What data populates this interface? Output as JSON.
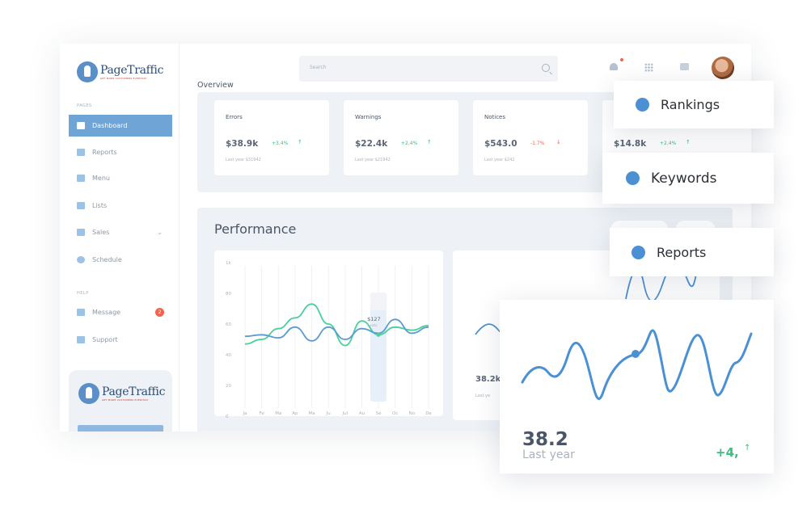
{
  "brand": {
    "name": "PageTraffic",
    "tagline": "GET MORE CUSTOMERS EVERYDAY"
  },
  "search": {
    "placeholder": "Search"
  },
  "sidebar": {
    "pages_label": "PAGES",
    "help_label": "HELP",
    "items": [
      {
        "label": "Dashboard",
        "icon": "dashboard-icon",
        "active": true
      },
      {
        "label": "Reports",
        "icon": "chart-icon"
      },
      {
        "label": "Menu",
        "icon": "menu-icon"
      },
      {
        "label": "Lists",
        "icon": "list-icon"
      },
      {
        "label": "Sales",
        "icon": "sales-icon",
        "caret": "⌄"
      },
      {
        "label": "Schedule",
        "icon": "clock-icon"
      }
    ],
    "help_items": [
      {
        "label": "Message",
        "icon": "message-icon",
        "badge": "2"
      },
      {
        "label": "Support",
        "icon": "support-icon"
      }
    ]
  },
  "overview": {
    "title": "Overview",
    "cards": [
      {
        "label": "Errors",
        "value": "$38.9k",
        "change": "+3,4%",
        "arrow": "↑",
        "sub": "Last year $31942",
        "negative": false
      },
      {
        "label": "Warnings",
        "value": "$22.4k",
        "change": "+2,4%",
        "arrow": "↑",
        "sub": "Last year $21942",
        "negative": false
      },
      {
        "label": "Notices",
        "value": "$543.0",
        "change": "-1.7%",
        "arrow": "↓",
        "sub": "Last year $242",
        "negative": true
      },
      {
        "label": "",
        "value": "$14.8k",
        "change": "+2,4%",
        "arrow": "↑",
        "sub": "",
        "negative": false
      }
    ]
  },
  "performance": {
    "title": "Performance",
    "side_value": "38.2k",
    "side_sub": "Last ye"
  },
  "chart_data": {
    "type": "line",
    "categories": [
      "Ja",
      "Fe",
      "Ma",
      "Ap",
      "Ma",
      "Ju",
      "Jul",
      "Au",
      "Se",
      "Oc",
      "No",
      "De"
    ],
    "y_ticks": [
      "0",
      "20",
      "40",
      "60",
      "80",
      "1k"
    ],
    "ylim": [
      0,
      100
    ],
    "tooltip": {
      "value": "$127",
      "label": "Seats"
    },
    "series": [
      {
        "color": "#4ad09a",
        "values": [
          47,
          50,
          57,
          64,
          73,
          60,
          46,
          62,
          53,
          58,
          56,
          59
        ]
      },
      {
        "color": "#5a9bd5",
        "values": [
          52,
          53,
          51,
          58,
          49,
          58,
          50,
          57,
          54,
          63,
          54,
          58
        ]
      }
    ]
  },
  "floating": {
    "tags": [
      {
        "label": "Rankings"
      },
      {
        "label": "Keywords"
      },
      {
        "label": "Reports"
      }
    ],
    "big_card": {
      "value": "38.2",
      "sub": "Last year",
      "change": "+4,",
      "arrow": "↑"
    }
  },
  "colors": {
    "accent": "#4a90d2",
    "positive": "#3cbf7d",
    "negative": "#f0654c",
    "active_nav": "#6ea4d6"
  }
}
